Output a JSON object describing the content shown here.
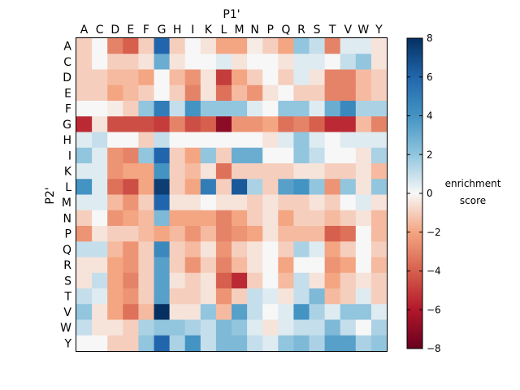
{
  "chart_data": {
    "type": "heatmap",
    "xlabel": "P1'",
    "ylabel": "P2'",
    "x_categories": [
      "A",
      "C",
      "D",
      "E",
      "F",
      "G",
      "H",
      "I",
      "K",
      "L",
      "M",
      "N",
      "P",
      "Q",
      "R",
      "S",
      "T",
      "V",
      "W",
      "Y"
    ],
    "y_categories": [
      "A",
      "C",
      "D",
      "E",
      "F",
      "G",
      "H",
      "I",
      "K",
      "L",
      "M",
      "N",
      "P",
      "Q",
      "R",
      "S",
      "T",
      "V",
      "W",
      "Y"
    ],
    "colorbar": {
      "label_line1": "enrichment",
      "label_line2": "score",
      "range": [
        -8,
        8
      ],
      "ticks": [
        "8",
        "6",
        "4",
        "2",
        "0",
        "−2",
        "−4",
        "−6",
        "−8"
      ],
      "colormap": "RdBu"
    },
    "values": [
      [
        -1,
        0,
        -3,
        -4,
        -1,
        6,
        -1,
        0,
        -0.5,
        -2,
        -2,
        -0.3,
        -1,
        -2,
        2,
        1,
        -3,
        0.5,
        0.5,
        -0.5
      ],
      [
        -1,
        0,
        -1,
        -1,
        -0.5,
        3,
        -0.5,
        0,
        0,
        0.5,
        -0.5,
        0,
        0,
        -0.5,
        0.5,
        0.5,
        0,
        1,
        2,
        -0.5
      ],
      [
        -1,
        -1,
        -1.5,
        -1.5,
        -2,
        0,
        -1.5,
        -2.5,
        -0.5,
        -5,
        -2,
        -1,
        0,
        -1,
        0.5,
        -0.5,
        -3,
        -3,
        -1.5,
        -1
      ],
      [
        -1,
        -1,
        -2,
        -1.5,
        -1,
        0,
        -1,
        -3,
        -0.5,
        -3.5,
        -1.5,
        -2.5,
        -0.5,
        0,
        -1,
        -1,
        -3,
        -3,
        -1.5,
        -1
      ],
      [
        0,
        0,
        -0.3,
        -1,
        2,
        5,
        1,
        4,
        2,
        2,
        2,
        0.5,
        0,
        2,
        2,
        0.5,
        3,
        4.5,
        1.5,
        1.5
      ],
      [
        -5.5,
        -0.5,
        -4.5,
        -4.5,
        -4.5,
        -5,
        -3,
        -4.5,
        -4,
        -7,
        -2.5,
        -2.5,
        -2,
        -3.5,
        -3,
        -4,
        -5.5,
        -5.5,
        -1.5,
        -3
      ],
      [
        0.5,
        1,
        0,
        0,
        -1,
        1,
        0,
        0,
        0,
        0,
        0,
        0,
        -0.5,
        0.5,
        2,
        0.5,
        0,
        0.5,
        0.5,
        0.5
      ],
      [
        2,
        0.5,
        -2.5,
        -3,
        2,
        6,
        -1,
        -2,
        2,
        -1,
        3,
        3,
        0,
        0,
        2,
        1,
        0,
        0,
        -0.5,
        1.5
      ],
      [
        0.5,
        0.5,
        -2.5,
        -2,
        -2,
        4,
        -1,
        -1.5,
        -0.5,
        -3.5,
        -1,
        -1,
        -1,
        -1,
        -0.5,
        -0.5,
        -1,
        -1,
        -0.5,
        -1.5
      ],
      [
        4,
        0.5,
        -3.5,
        -4.5,
        -2,
        7.5,
        -1,
        -2,
        5,
        -1,
        6.5,
        1.5,
        -1,
        3.5,
        4,
        2,
        -2.5,
        2,
        -0.5,
        2
      ],
      [
        0.5,
        0.5,
        -1.5,
        -2.5,
        -1,
        6,
        -0.5,
        -0.5,
        0,
        -0.5,
        -0.5,
        -1,
        -0.5,
        -1,
        -1,
        -0.5,
        -1,
        0,
        0.5,
        -0.5
      ],
      [
        -1,
        0,
        -2.5,
        -2,
        -1.5,
        2.5,
        -2,
        -2,
        -2,
        -3,
        -2,
        -1,
        -0.5,
        -2,
        -1,
        -1,
        -1.5,
        -1,
        -0.5,
        -1.5
      ],
      [
        -2.5,
        -0.5,
        -1,
        -1,
        -1.5,
        -2,
        -1.5,
        -2.5,
        -1.5,
        -3,
        -2.5,
        -2,
        -0.5,
        -1.5,
        -1.5,
        -1.5,
        -4,
        -3.5,
        0,
        -1.5
      ],
      [
        1,
        1,
        -1.5,
        -2.5,
        -1,
        4.5,
        -1,
        -1.5,
        -0.5,
        -2.5,
        -1,
        -0.5,
        0,
        -1,
        1.5,
        0.5,
        -2,
        -1,
        0,
        -1
      ],
      [
        -0.5,
        -0.5,
        -2,
        -2.5,
        -1,
        3.5,
        -1,
        -2.5,
        -1,
        -3,
        -1.5,
        -0.5,
        0,
        -2,
        0,
        0,
        -2.5,
        -2,
        0,
        -1.5
      ],
      [
        -0.5,
        1,
        -2,
        -3,
        -1,
        3.5,
        -0.5,
        -1,
        -0.5,
        -4,
        -5.5,
        -1,
        0,
        -1.5,
        1,
        -0.5,
        -2,
        -1,
        -0.5,
        -1
      ],
      [
        1,
        0.5,
        -2,
        -2.5,
        -1,
        3.5,
        -1,
        -1,
        -0.5,
        -2.5,
        -1,
        1,
        0.5,
        -0.5,
        1,
        2.5,
        -1.5,
        -1,
        0.5,
        -1
      ],
      [
        2,
        -0.5,
        -2,
        -3.5,
        -1.5,
        8,
        -0.5,
        -0.5,
        2,
        -1.5,
        3.5,
        1,
        0,
        0.5,
        4,
        1.5,
        0.5,
        2,
        2,
        0.5
      ],
      [
        1,
        -0.5,
        -0.5,
        -1,
        1.5,
        2,
        2,
        1.5,
        1,
        2.5,
        2,
        0.5,
        -0.5,
        0.5,
        1,
        1,
        2.5,
        1,
        0,
        1.5
      ],
      [
        0,
        0,
        -1,
        -1,
        2,
        6,
        1.5,
        4,
        1,
        2.5,
        2.5,
        1,
        0.5,
        2,
        2.5,
        1.5,
        3.5,
        3.5,
        1.5,
        2
      ]
    ]
  }
}
